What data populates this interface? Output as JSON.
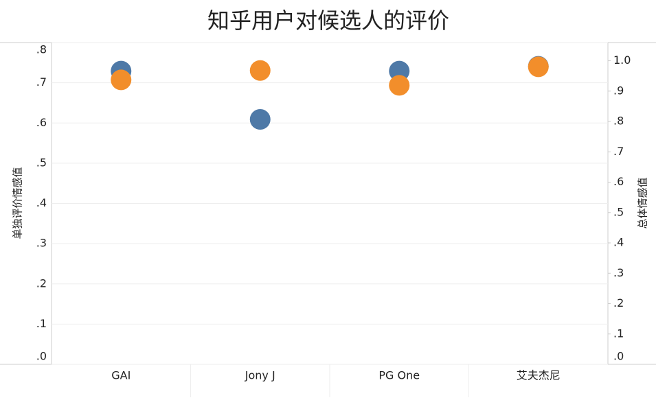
{
  "chart_data": {
    "type": "scatter",
    "title": "知乎用户对候选人的评价",
    "categories": [
      "GAI",
      "Jony J",
      "PG One",
      "艾夫杰尼"
    ],
    "y_label": "单独评价情感值",
    "y2_label": "总体情感值",
    "ylim": [
      0,
      0.8
    ],
    "yticks": [
      {
        "value": 0,
        "label": ".0"
      },
      {
        "value": 0.1,
        "label": ".1"
      },
      {
        "value": 0.2,
        "label": ".2"
      },
      {
        "value": 0.3,
        "label": ".3"
      },
      {
        "value": 0.4,
        "label": ".4"
      },
      {
        "value": 0.5,
        "label": ".5"
      },
      {
        "value": 0.6,
        "label": ".6"
      },
      {
        "value": 0.7,
        "label": ".7"
      },
      {
        "value": 0.8,
        "label": ".8"
      }
    ],
    "y2lim": [
      0,
      1.06
    ],
    "y2ticks": [
      {
        "value": 0,
        "label": ".0"
      },
      {
        "value": 0.1,
        "label": ".1"
      },
      {
        "value": 0.2,
        "label": ".2"
      },
      {
        "value": 0.3,
        "label": ".3"
      },
      {
        "value": 0.4,
        "label": ".4"
      },
      {
        "value": 0.5,
        "label": ".5"
      },
      {
        "value": 0.6,
        "label": ".6"
      },
      {
        "value": 0.7,
        "label": ".7"
      },
      {
        "value": 0.8,
        "label": ".8"
      },
      {
        "value": 0.9,
        "label": ".9"
      },
      {
        "value": 1,
        "label": "1.0"
      }
    ],
    "grid": true,
    "series": [
      {
        "name": "单独评价情感值",
        "color": "#4e79a7",
        "values": [
          0.729,
          0.609,
          0.729,
          0.741
        ]
      },
      {
        "name": "总体情感值",
        "color": "#f28e2b",
        "axis": "y2",
        "values": [
          0.937,
          0.968,
          0.919,
          0.98
        ]
      }
    ]
  }
}
